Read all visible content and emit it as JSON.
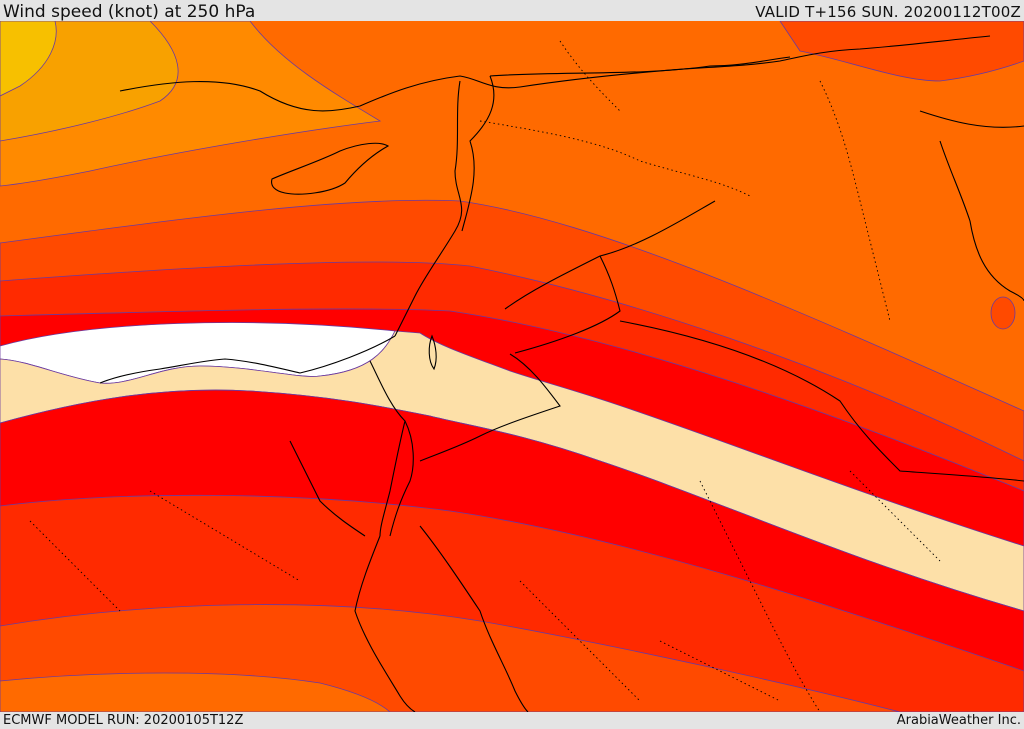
{
  "header": {
    "title": "Wind speed (knot) at 250 hPa",
    "valid": "VALID T+156 SUN. 20200112T00Z"
  },
  "footer": {
    "model_run": "ECMWF MODEL RUN: 20200105T12Z",
    "credit": "ArabiaWeather Inc."
  },
  "map": {
    "fill_colors": {
      "weakest": "#f7b500",
      "light_orange": "#ff8a00",
      "orange": "#ff6a00",
      "dark_orange": "#ff4a00",
      "red_orange": "#ff2a00",
      "red": "#ff0000",
      "jet_core": "#ffffff",
      "beige": "#fde0a8",
      "band_edge": "#6a3aa0",
      "coastline": "#000000"
    }
  }
}
